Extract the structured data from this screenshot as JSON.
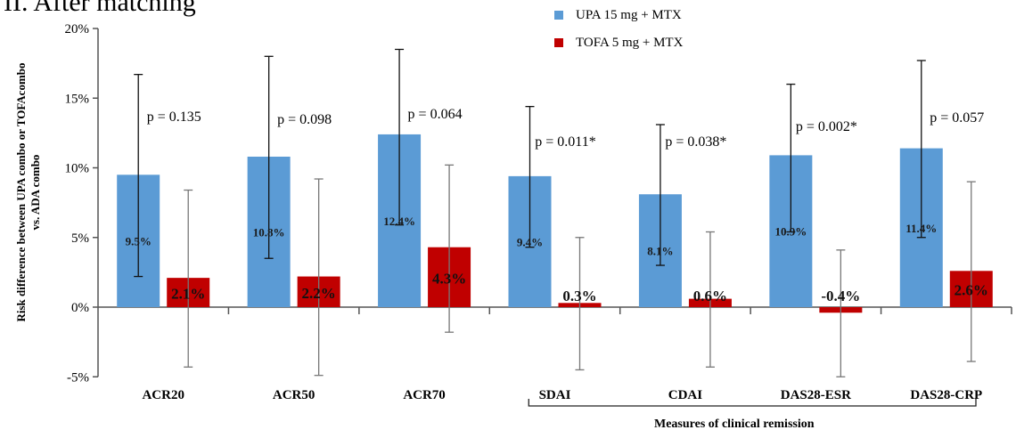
{
  "page": {
    "title": "II. After matching"
  },
  "chart_data": {
    "type": "bar",
    "ylabel": "Risk difference between UPA combo or TOFAcombo vs. ADA combo",
    "xlabel": "",
    "ylim": [
      -5,
      20
    ],
    "yticks": [
      -5,
      0,
      5,
      10,
      15,
      20
    ],
    "ytick_labels": [
      "-5%",
      "0%",
      "5%",
      "10%",
      "15%",
      "20%"
    ],
    "categories": [
      "ACR20",
      "ACR50",
      "ACR70",
      "SDAI",
      "CDAI",
      "DAS28-ESR",
      "DAS28-CRP"
    ],
    "series": [
      {
        "name": "UPA 15 mg + MTX",
        "color": "#5b9bd5",
        "values": [
          9.5,
          10.8,
          12.4,
          9.4,
          8.1,
          10.9,
          11.4
        ],
        "labels": [
          "9.5%",
          "10.8%",
          "12.4%",
          "9.4%",
          "8.1%",
          "10.9%",
          "11.4%"
        ],
        "ci_low": [
          2.2,
          3.5,
          5.9,
          4.3,
          3.0,
          5.4,
          5.0
        ],
        "ci_high": [
          16.7,
          18.0,
          18.5,
          14.4,
          13.1,
          16.0,
          17.7
        ]
      },
      {
        "name": "TOFA 5 mg + MTX",
        "color": "#c00000",
        "values": [
          2.1,
          2.2,
          4.3,
          0.3,
          0.6,
          -0.4,
          2.6
        ],
        "labels": [
          "2.1%",
          "2.2%",
          "4.3%",
          "0.3%",
          "0.6%",
          "-0.4%",
          "2.6%"
        ],
        "ci_low": [
          -4.3,
          -4.9,
          -1.8,
          -4.5,
          -4.3,
          -5.0,
          -3.9
        ],
        "ci_high": [
          8.4,
          9.2,
          10.2,
          5.0,
          5.4,
          4.1,
          9.0
        ]
      }
    ],
    "p_values": [
      "p = 0.135",
      "p = 0.098",
      "p = 0.064",
      "p = 0.011*",
      "p = 0.038*",
      "p = 0.002*",
      "p = 0.057"
    ],
    "bracket_label": "Measures of clinical remission",
    "legend_position": "top-center",
    "grid": false
  }
}
